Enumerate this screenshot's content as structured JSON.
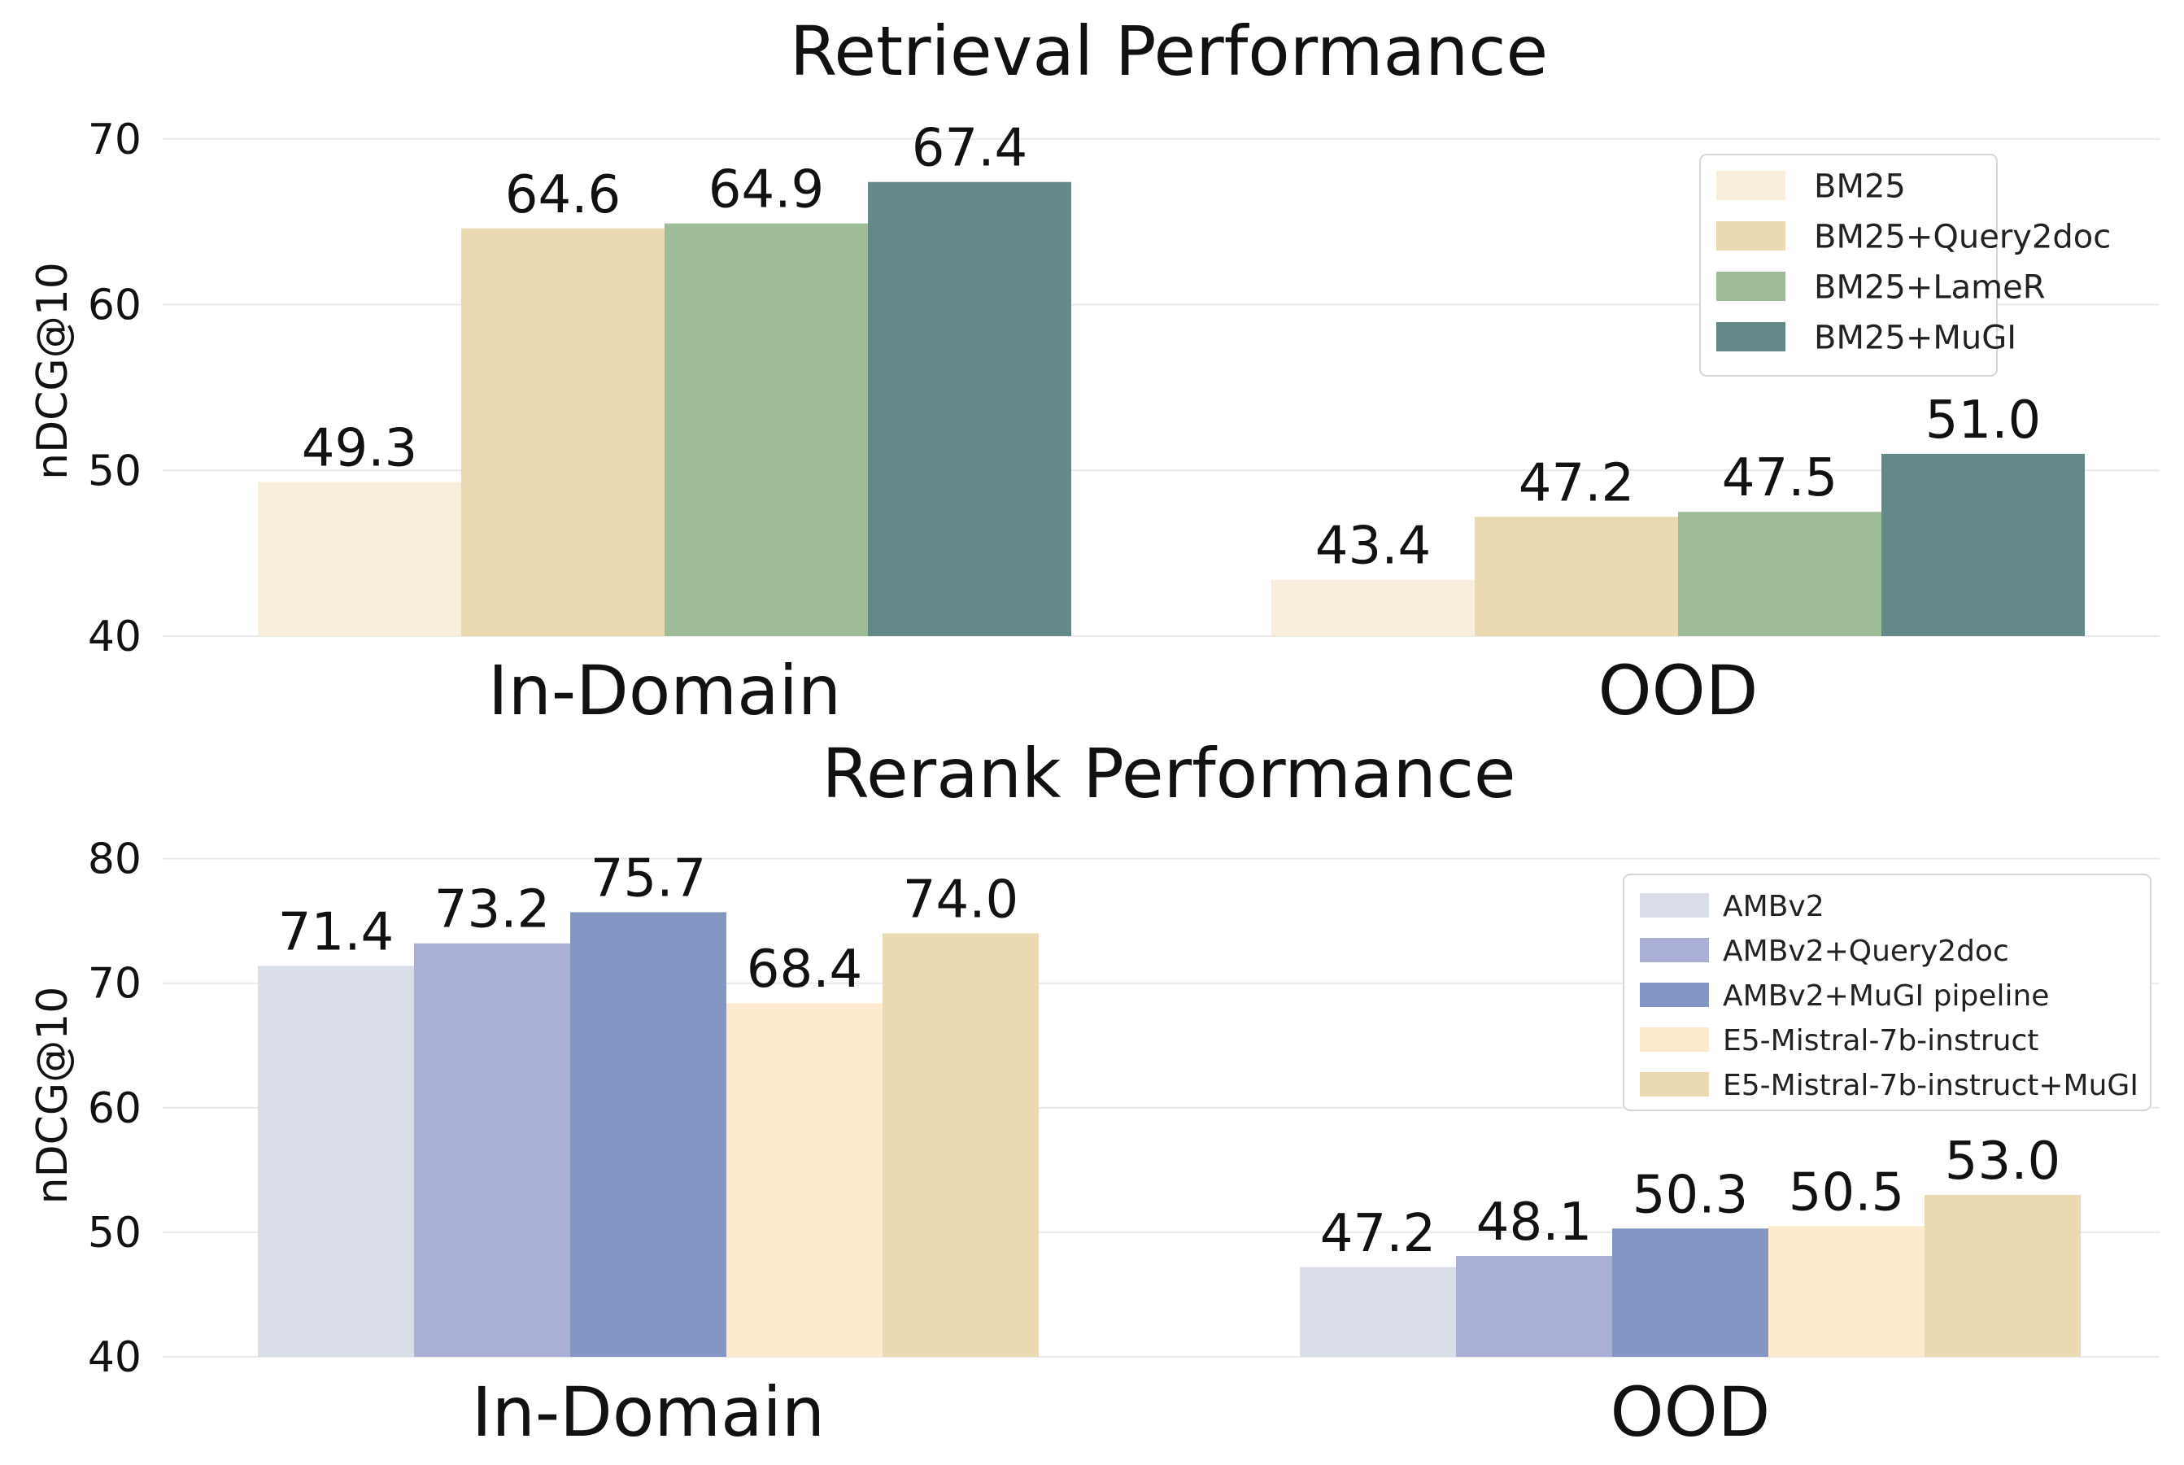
{
  "chart_data": [
    {
      "type": "bar",
      "title": "Retrieval Performance",
      "xlabel": "",
      "ylabel": "nDCG@10",
      "ylim": [
        40,
        72
      ],
      "yticks": [
        40,
        50,
        60,
        70
      ],
      "grid": true,
      "legend_position": "top-right",
      "categories": [
        "In-Domain",
        "OOD"
      ],
      "series": [
        {
          "name": "BM25",
          "color": "#F9EEDB",
          "values": [
            49.3,
            43.4
          ]
        },
        {
          "name": "BM25+Query2doc",
          "color": "#EAD9B1",
          "values": [
            64.6,
            47.2
          ]
        },
        {
          "name": "BM25+LameR",
          "color": "#9EBC98",
          "values": [
            64.9,
            47.5
          ]
        },
        {
          "name": "BM25+MuGI",
          "color": "#638888",
          "values": [
            67.4,
            51.0
          ]
        }
      ],
      "data_labels": [
        [
          "49.3",
          "43.4"
        ],
        [
          "64.6",
          "47.2"
        ],
        [
          "64.9",
          "47.5"
        ],
        [
          "67.4",
          "51.0"
        ]
      ]
    },
    {
      "type": "bar",
      "title": "Rerank Performance",
      "xlabel": "",
      "ylabel": "nDCG@10",
      "ylim": [
        40,
        82
      ],
      "yticks": [
        40,
        50,
        60,
        70,
        80
      ],
      "grid": true,
      "legend_position": "top-right",
      "categories": [
        "In-Domain",
        "OOD"
      ],
      "series": [
        {
          "name": "AMBv2",
          "color": "#DADEE9",
          "values": [
            71.4,
            47.2
          ]
        },
        {
          "name": "AMBv2+Query2doc",
          "color": "#AAB0D5",
          "values": [
            73.2,
            48.1
          ]
        },
        {
          "name": "AMBv2+MuGI pipeline",
          "color": "#8396C4",
          "values": [
            75.7,
            50.3
          ]
        },
        {
          "name": "E5-Mistral-7b-instruct",
          "color": "#FDEACF",
          "values": [
            68.4,
            50.5
          ]
        },
        {
          "name": "E5-Mistral-7b-instruct+MuGI",
          "color": "#EAD9B1",
          "values": [
            74.0,
            53.0
          ]
        }
      ],
      "data_labels": [
        [
          "71.4",
          "47.2"
        ],
        [
          "73.2",
          "48.1"
        ],
        [
          "75.7",
          "50.3"
        ],
        [
          "68.4",
          "50.5"
        ],
        [
          "74.0",
          "53.0"
        ]
      ]
    }
  ]
}
